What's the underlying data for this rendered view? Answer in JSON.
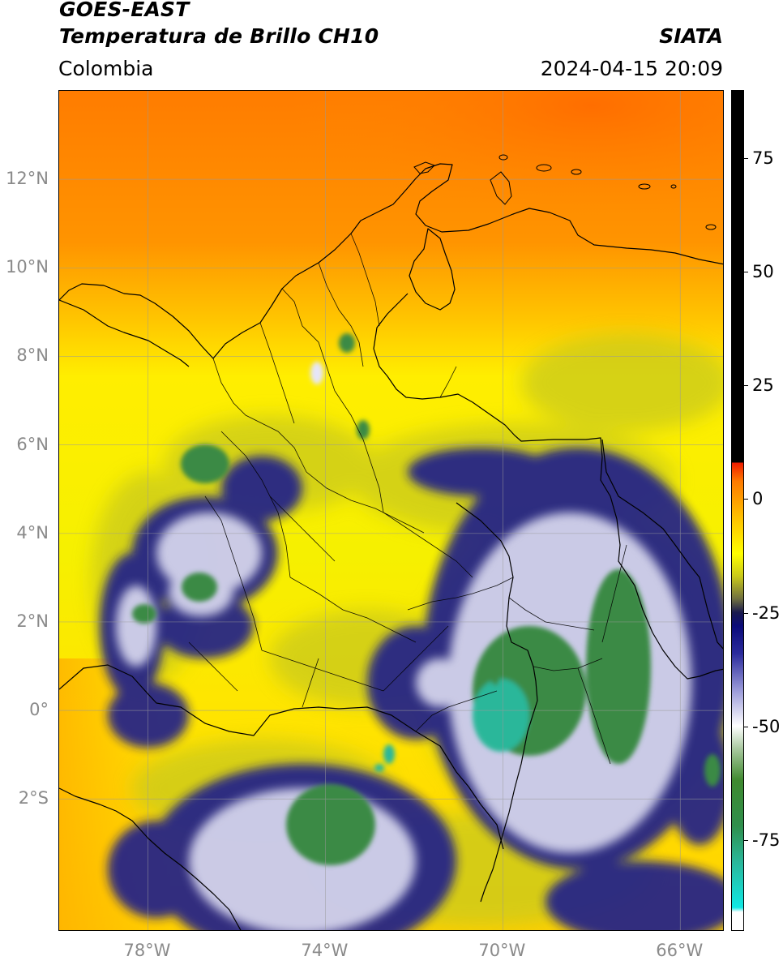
{
  "header": {
    "satellite": "GOES-EAST",
    "product": "Temperatura de Brillo CH10",
    "region": "Colombia",
    "agency": "SIATA",
    "datetime": "2024-04-15 20:09"
  },
  "map": {
    "lon_range": [
      -80,
      -65
    ],
    "lat_range": [
      -5,
      14
    ],
    "lat_ticks": [
      {
        "value": 12,
        "label": "12°N"
      },
      {
        "value": 10,
        "label": "10°N"
      },
      {
        "value": 8,
        "label": "8°N"
      },
      {
        "value": 6,
        "label": "6°N"
      },
      {
        "value": 4,
        "label": "4°N"
      },
      {
        "value": 2,
        "label": "2°N"
      },
      {
        "value": 0,
        "label": "0°"
      },
      {
        "value": -2,
        "label": "2°S"
      }
    ],
    "lon_ticks": [
      {
        "value": -78,
        "label": "78°W"
      },
      {
        "value": -74,
        "label": "74°W"
      },
      {
        "value": -70,
        "label": "70°W"
      },
      {
        "value": -66,
        "label": "66°W"
      }
    ],
    "grid": true
  },
  "colorbar": {
    "range": [
      -95,
      90
    ],
    "ticks": [
      {
        "value": 75,
        "label": "75"
      },
      {
        "value": 50,
        "label": "50"
      },
      {
        "value": 25,
        "label": "25"
      },
      {
        "value": 0,
        "label": "0"
      },
      {
        "value": -25,
        "label": "-25"
      },
      {
        "value": -50,
        "label": "-50"
      },
      {
        "value": -75,
        "label": "-75"
      }
    ],
    "stops": [
      {
        "value": -95,
        "color": "#ffffff"
      },
      {
        "value": -91,
        "color": "#ffffff"
      },
      {
        "value": -90,
        "color": "#10e8e4"
      },
      {
        "value": -80,
        "color": "#2ab79a"
      },
      {
        "value": -72,
        "color": "#2f8f4c"
      },
      {
        "value": -62,
        "color": "#3f8a2f"
      },
      {
        "value": -55,
        "color": "#a9c9a0"
      },
      {
        "value": -50,
        "color": "#ffffff"
      },
      {
        "value": -42,
        "color": "#9898d8"
      },
      {
        "value": -34,
        "color": "#2b2b9c"
      },
      {
        "value": -28,
        "color": "#0b0b7a"
      },
      {
        "value": -25,
        "color": "#1a1a4e"
      },
      {
        "value": -22,
        "color": "#6f6f40"
      },
      {
        "value": -17,
        "color": "#c9c91a"
      },
      {
        "value": -12,
        "color": "#ffff00"
      },
      {
        "value": -4,
        "color": "#ffc000"
      },
      {
        "value": 4,
        "color": "#ff7a00"
      },
      {
        "value": 8,
        "color": "#ee1c00"
      },
      {
        "value": 8.1,
        "color": "#000000"
      },
      {
        "value": 90,
        "color": "#000000"
      }
    ]
  },
  "legend_colors": {
    "ocean_warm": "#ff8a00",
    "mid_level": "#f5f000",
    "olive": "#c9c91a",
    "cold_navy": "#1e1e8c",
    "cloud_white": "#e8e8f8",
    "cold_green": "#3a8a45",
    "cold_teal": "#2ab79a",
    "boundary": "#000000"
  }
}
